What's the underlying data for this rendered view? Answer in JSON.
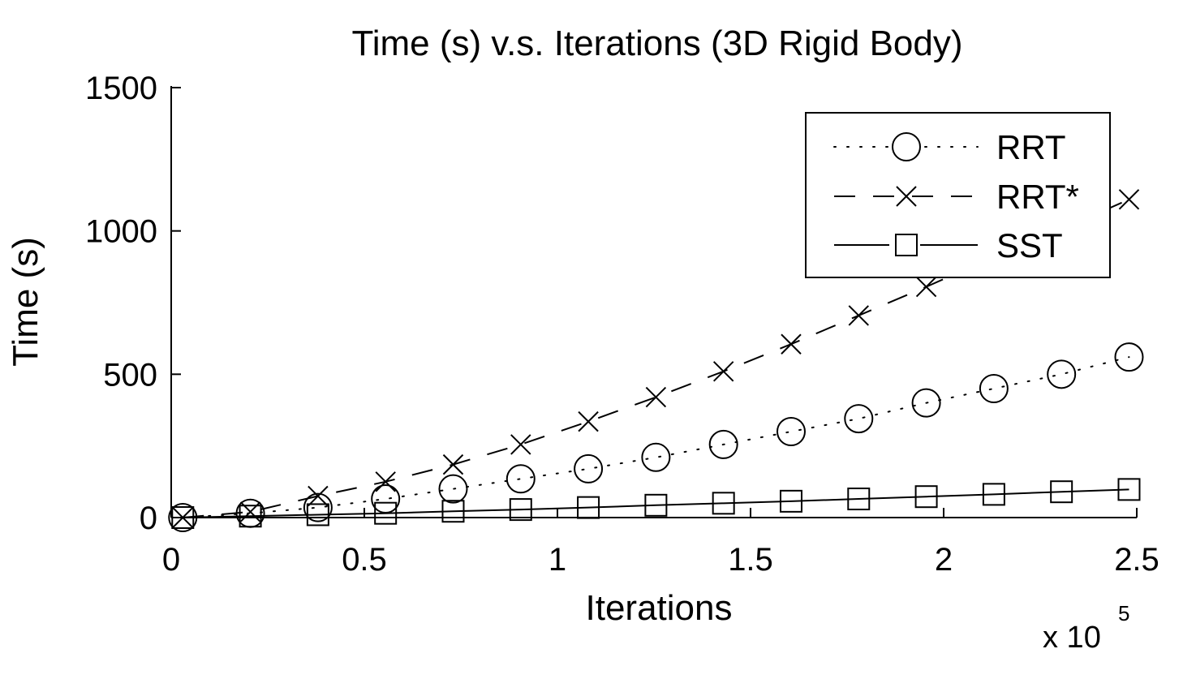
{
  "chart_data": {
    "type": "line",
    "title": "Time (s) v.s. Iterations (3D Rigid Body)",
    "xlabel": "Iterations",
    "ylabel": "Time (s)",
    "x_multiplier_label": {
      "base": "x 10",
      "exponent": "5"
    },
    "xlim": [
      0,
      2.5
    ],
    "ylim": [
      0,
      1500
    ],
    "xticks": [
      0,
      0.5,
      1,
      1.5,
      2,
      2.5
    ],
    "xtick_labels": [
      "0",
      "0.5",
      "1",
      "1.5",
      "2",
      "2.5"
    ],
    "yticks": [
      0,
      500,
      1000,
      1500
    ],
    "ytick_labels": [
      "0",
      "500",
      "1000",
      "1500"
    ],
    "grid": false,
    "legend_position": "top-right",
    "x": [
      0.03,
      0.205,
      0.38,
      0.555,
      0.73,
      0.905,
      1.08,
      1.255,
      1.43,
      1.605,
      1.78,
      1.955,
      2.13,
      2.305,
      2.48
    ],
    "series": [
      {
        "name": "RRT",
        "line_style": "dotted",
        "marker": "circle",
        "color": "#000000",
        "values": [
          0,
          15,
          35,
          65,
          100,
          135,
          170,
          210,
          255,
          300,
          345,
          400,
          450,
          500,
          560
        ]
      },
      {
        "name": "RRT*",
        "line_style": "dashed",
        "marker": "x",
        "color": "#000000",
        "values": [
          0,
          20,
          75,
          125,
          185,
          255,
          335,
          420,
          510,
          605,
          705,
          805,
          910,
          1005,
          1110
        ]
      },
      {
        "name": "SST",
        "line_style": "solid",
        "marker": "square",
        "color": "#000000",
        "values": [
          0,
          5,
          10,
          15,
          22,
          28,
          35,
          43,
          50,
          57,
          65,
          73,
          81,
          90,
          98
        ]
      }
    ]
  }
}
